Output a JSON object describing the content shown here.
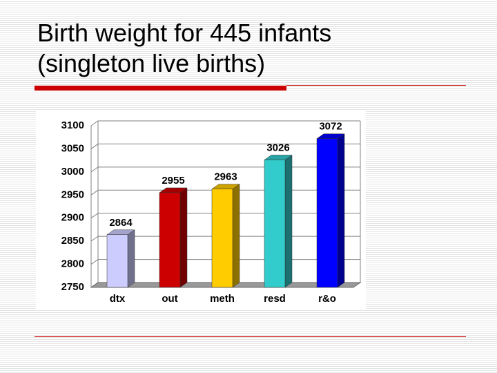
{
  "chart_data": {
    "type": "bar",
    "title": "Birth weight for 445 infants (singleton live births)",
    "categories": [
      "dtx",
      "out",
      "meth",
      "resd",
      "r&o"
    ],
    "values": [
      2864,
      2955,
      2963,
      3026,
      3072
    ],
    "colors": [
      "#ccccff",
      "#cc0000",
      "#ffcc00",
      "#33cccc",
      "#0000ff"
    ],
    "ylim": [
      2750,
      3100
    ],
    "yticks": [
      2750,
      2800,
      2850,
      2900,
      2950,
      3000,
      3050,
      3100
    ],
    "grid": true
  }
}
